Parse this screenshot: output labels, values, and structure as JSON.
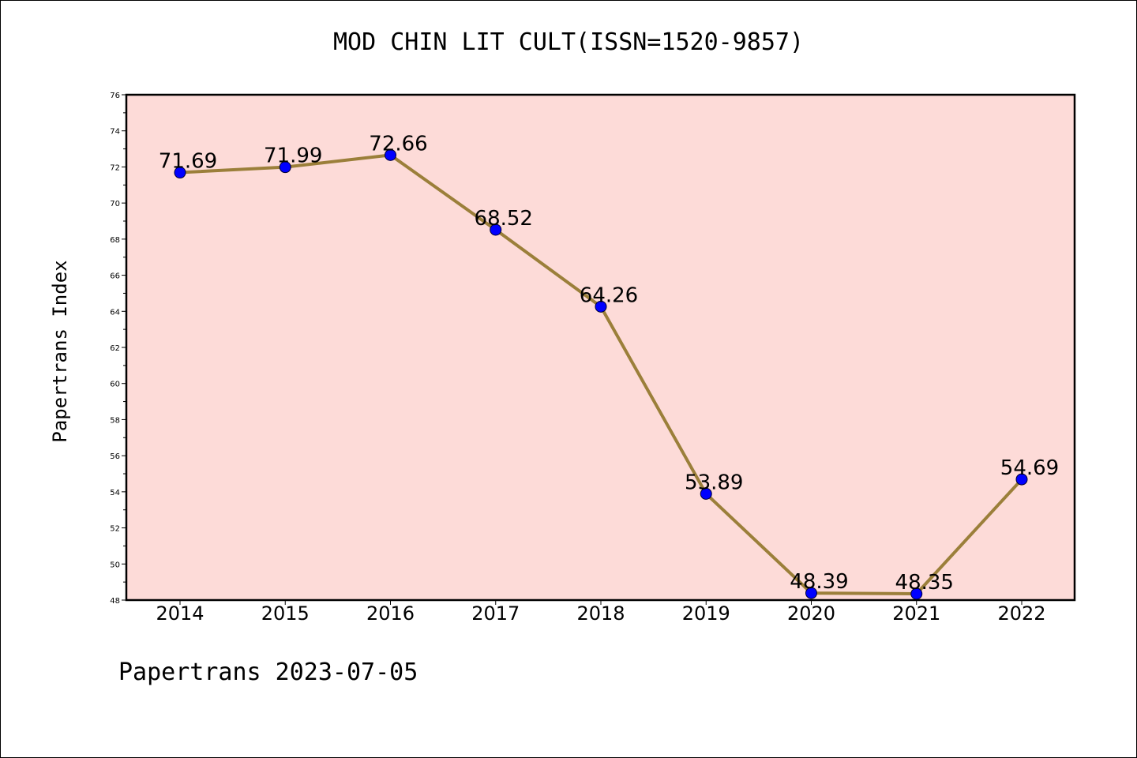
{
  "page": {
    "title": "MOD CHIN LIT CULT(ISSN=1520-9857)",
    "footer": "Papertrans 2023-07-05"
  },
  "colors": {
    "plot_background": "#fddbd8",
    "line": "#9b7f3a",
    "marker": "#0000ff",
    "axis": "#000000"
  },
  "chart_data": {
    "type": "line",
    "title": "MOD CHIN LIT CULT(ISSN=1520-9857)",
    "xlabel": "",
    "ylabel": "Papertrans Index",
    "categories": [
      "2014",
      "2015",
      "2016",
      "2017",
      "2018",
      "2019",
      "2020",
      "2021",
      "2022"
    ],
    "series": [
      {
        "values": [
          71.69,
          71.99,
          72.66,
          68.52,
          64.26,
          53.89,
          48.39,
          48.35,
          54.69
        ],
        "labels": [
          "71.69",
          "71.99",
          "72.66",
          "68.52",
          "64.26",
          "53.89",
          "48.39",
          "48.35",
          "54.69"
        ]
      }
    ],
    "ylim": [
      48,
      76
    ],
    "yticks": [
      "48",
      "50",
      "52",
      "54",
      "56",
      "58",
      "60",
      "62",
      "64",
      "66",
      "68",
      "70",
      "72",
      "74",
      "76"
    ],
    "grid": false,
    "legend": "none"
  }
}
